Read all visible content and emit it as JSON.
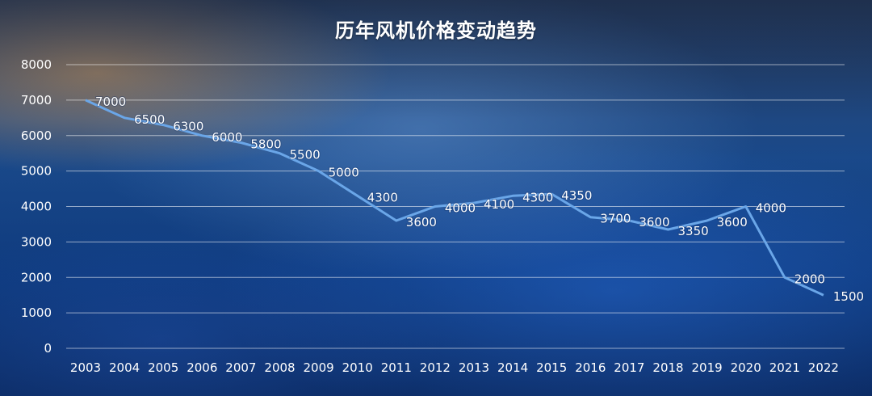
{
  "chart_data": {
    "type": "line",
    "title": "历年风机价格变动趋势",
    "categories": [
      "2003",
      "2004",
      "2005",
      "2006",
      "2007",
      "2008",
      "2009",
      "2010",
      "2011",
      "2012",
      "2013",
      "2014",
      "2015",
      "2016",
      "2017",
      "2018",
      "2019",
      "2020",
      "2021",
      "2022"
    ],
    "series": [
      {
        "values": [
          7000,
          6500,
          6300,
          6000,
          5800,
          5500,
          5000,
          4300,
          3600,
          4000,
          4100,
          4300,
          4350,
          3700,
          3600,
          3350,
          3600,
          4000,
          2000,
          1500
        ]
      }
    ],
    "data_labels": [
      "7000",
      "6500",
      "6300",
      "6000",
      "5800",
      "5500",
      "5000",
      "4300",
      "3600",
      "4000",
      "4100",
      "4300",
      "4350",
      "3700",
      "3600",
      "3350",
      "3600",
      "4000",
      "2000",
      "1500"
    ],
    "yticks": [
      "0",
      "1000",
      "2000",
      "3000",
      "4000",
      "5000",
      "6000",
      "7000",
      "8000"
    ],
    "ylim": [
      0,
      8000
    ],
    "grid": true,
    "legend": "none",
    "colors": {
      "line": "#6aa6e8",
      "text": "#ffffff",
      "grid": "#c8d4e6"
    }
  }
}
